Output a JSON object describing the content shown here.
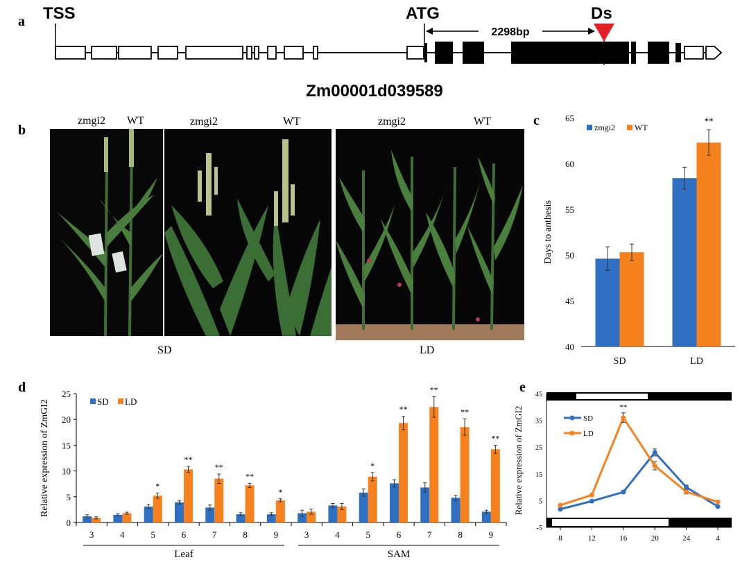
{
  "panels": {
    "a": "a",
    "b": "b",
    "c": "c",
    "d": "d",
    "e": "e"
  },
  "gene_structure": {
    "tss_label": "TSS",
    "atg_label": "ATG",
    "ds_label": "Ds",
    "distance_label": "2298bp",
    "gene_id": "Zm00001d039589"
  },
  "photos": {
    "photo1_labels": [
      "zmgi2",
      "WT"
    ],
    "photo2_labels": [
      "zmgi2",
      "WT"
    ],
    "photo3_labels": [
      "zmgi2",
      "WT"
    ],
    "sd_caption": "SD",
    "ld_caption": "LD"
  },
  "colors": {
    "zmgi2": "#2e6fc2",
    "WT": "#f5821f",
    "SD": "#2e6fc2",
    "LD": "#f5821f"
  },
  "chart_data": [
    {
      "id": "c",
      "type": "bar",
      "title": "",
      "xlabel": "",
      "ylabel": "Days to anthesis",
      "ylim": [
        40,
        65
      ],
      "yticks": [
        40,
        45,
        50,
        55,
        60,
        65
      ],
      "categories": [
        "SD",
        "LD"
      ],
      "series": [
        {
          "name": "zmgi2",
          "values": [
            49.6,
            58.4
          ],
          "errors": [
            1.3,
            1.2
          ]
        },
        {
          "name": "WT",
          "values": [
            50.3,
            62.3
          ],
          "errors": [
            0.9,
            1.4
          ]
        }
      ],
      "annotations": [
        "",
        "**"
      ],
      "legend": [
        "zmgi2",
        "WT"
      ]
    },
    {
      "id": "d",
      "type": "bar",
      "ylabel": "Relative expression of ZmGI2",
      "ylim": [
        0,
        25
      ],
      "yticks": [
        0,
        5,
        10,
        15,
        20,
        25
      ],
      "categories": [
        "3",
        "4",
        "5",
        "6",
        "7",
        "8",
        "9",
        "3",
        "4",
        "5",
        "6",
        "7",
        "8",
        "9"
      ],
      "groups": [
        "Leaf",
        "SAM"
      ],
      "series": [
        {
          "name": "SD",
          "values": [
            1.2,
            1.5,
            3.1,
            3.9,
            2.9,
            1.6,
            1.6,
            1.8,
            3.3,
            5.8,
            7.6,
            6.8,
            4.8,
            2.1
          ],
          "errors": [
            0.3,
            0.2,
            0.4,
            0.3,
            0.5,
            0.3,
            0.3,
            0.6,
            0.4,
            0.7,
            0.7,
            0.9,
            0.5,
            0.3
          ]
        },
        {
          "name": "LD",
          "values": [
            0.9,
            1.8,
            5.2,
            10.3,
            8.5,
            7.2,
            4.3,
            2.1,
            3.1,
            8.9,
            19.3,
            22.4,
            18.5,
            14.2
          ],
          "errors": [
            0.2,
            0.2,
            0.5,
            0.6,
            0.9,
            0.4,
            0.3,
            0.5,
            0.6,
            0.8,
            1.3,
            2.0,
            1.6,
            0.8
          ]
        }
      ],
      "annotations": [
        "",
        "",
        "*",
        "**",
        "**",
        "**",
        "*",
        "",
        "",
        "*",
        "**",
        "**",
        "**",
        "**"
      ],
      "legend": [
        "SD",
        "LD"
      ]
    },
    {
      "id": "e",
      "type": "line",
      "ylabel": "Relative expression of ZmGI2",
      "ylim": [
        -5,
        45
      ],
      "yticks": [
        -5,
        5,
        15,
        25,
        35,
        45
      ],
      "x": [
        "8",
        "12",
        "16",
        "20",
        "24",
        "4"
      ],
      "series": [
        {
          "name": "SD",
          "values": [
            1.8,
            4.8,
            8.2,
            23.0,
            10.0,
            2.8
          ],
          "errors": [
            0.3,
            0.3,
            0.5,
            1.3,
            0.8,
            0.3
          ]
        },
        {
          "name": "LD",
          "values": [
            3.3,
            7.1,
            36.0,
            18.0,
            8.3,
            4.5
          ],
          "errors": [
            0.3,
            0.4,
            1.8,
            1.5,
            0.8,
            0.3
          ]
        }
      ],
      "annotations": [
        "",
        "",
        "**",
        "",
        "",
        ""
      ],
      "legend": [
        "SD",
        "LD"
      ]
    }
  ]
}
